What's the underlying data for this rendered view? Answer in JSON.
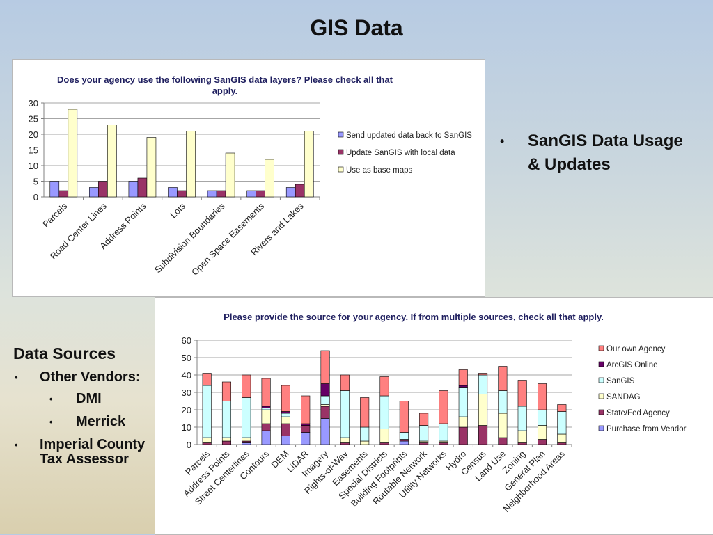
{
  "slide": {
    "title": "GIS Data",
    "right_bullet": "SanGIS Data Usage & Updates",
    "data_sources": {
      "heading": "Data Sources",
      "items": [
        {
          "label": "Other Vendors:",
          "level": 1
        },
        {
          "label": "DMI",
          "level": 2
        },
        {
          "label": "Merrick",
          "level": 2
        },
        {
          "label": "Imperial County Tax Assessor",
          "level": 1
        }
      ]
    },
    "bullet_glyph": "•"
  },
  "chart_data": [
    {
      "type": "bar",
      "title": "Does your agency use the following SanGIS data layers? Please check all that apply.",
      "categories": [
        "Parcels",
        "Road Center Lines",
        "Address Points",
        "Lots",
        "Subdivision Boundaries",
        "Open Space Easements",
        "Rivers and Lakes"
      ],
      "series": [
        {
          "name": "Send updated data back to SanGIS",
          "color": "#9999ff",
          "values": [
            5,
            3,
            5,
            3,
            2,
            2,
            3
          ]
        },
        {
          "name": "Update SanGIS with local data",
          "color": "#993366",
          "values": [
            2,
            5,
            6,
            2,
            2,
            2,
            4
          ]
        },
        {
          "name": "Use as base maps",
          "color": "#ffffcc",
          "values": [
            28,
            23,
            19,
            21,
            14,
            12,
            21
          ]
        }
      ],
      "yticks": [
        0,
        5,
        10,
        15,
        20,
        25,
        30
      ],
      "ylim": [
        0,
        30
      ],
      "legend": "right",
      "grid": true
    },
    {
      "type": "bar",
      "stacked": true,
      "title": "Please provide the source for your agency.  If from multiple sources, check all that apply.",
      "categories": [
        "Parcels",
        "Address Points",
        "Street Centerlines",
        "Contours",
        "DEM",
        "LiDAR",
        "Imagery",
        "Rights-of-Way",
        "Easements",
        "Special Districts",
        "Building Footprints",
        "Routable Network",
        "Utility Networks",
        "Hydro",
        "Census",
        "Land Use",
        "Zoning",
        "General Plan",
        "Neighborhood Areas"
      ],
      "series": [
        {
          "name": "Purchase from Vendor",
          "color": "#9999ff",
          "values": [
            0,
            0,
            1,
            8,
            5,
            7,
            15,
            0,
            0,
            0,
            2,
            0,
            0,
            0,
            0,
            0,
            0,
            0,
            0
          ]
        },
        {
          "name": "State/Fed Agency",
          "color": "#993366",
          "values": [
            1,
            2,
            1,
            4,
            7,
            4,
            7,
            1,
            0,
            1,
            1,
            1,
            1,
            10,
            11,
            4,
            1,
            3,
            1
          ]
        },
        {
          "name": "SANDAG",
          "color": "#ffffcc",
          "values": [
            3,
            2,
            2,
            8,
            4,
            0,
            1,
            3,
            2,
            8,
            0,
            1,
            1,
            6,
            18,
            14,
            7,
            8,
            5
          ]
        },
        {
          "name": "SanGIS",
          "color": "#ccffff",
          "values": [
            30,
            21,
            23,
            1,
            2,
            0,
            5,
            27,
            8,
            19,
            4,
            9,
            10,
            17,
            11,
            13,
            14,
            9,
            13
          ]
        },
        {
          "name": "ArcGIS Online",
          "color": "#660066",
          "values": [
            0,
            0,
            0,
            1,
            1,
            1,
            7,
            0,
            0,
            0,
            0,
            0,
            0,
            1,
            0,
            0,
            0,
            0,
            0
          ]
        },
        {
          "name": "Our own Agency",
          "color": "#ff8080",
          "values": [
            7,
            11,
            13,
            16,
            15,
            16,
            19,
            9,
            17,
            11,
            18,
            7,
            19,
            9,
            1,
            14,
            15,
            15,
            4
          ]
        }
      ],
      "legend_order": [
        "Our own Agency",
        "ArcGIS Online",
        "SanGIS",
        "SANDAG",
        "State/Fed Agency",
        "Purchase from Vendor"
      ],
      "yticks": [
        0,
        10,
        20,
        30,
        40,
        50,
        60
      ],
      "ylim": [
        0,
        60
      ],
      "legend": "right",
      "grid": true
    }
  ]
}
